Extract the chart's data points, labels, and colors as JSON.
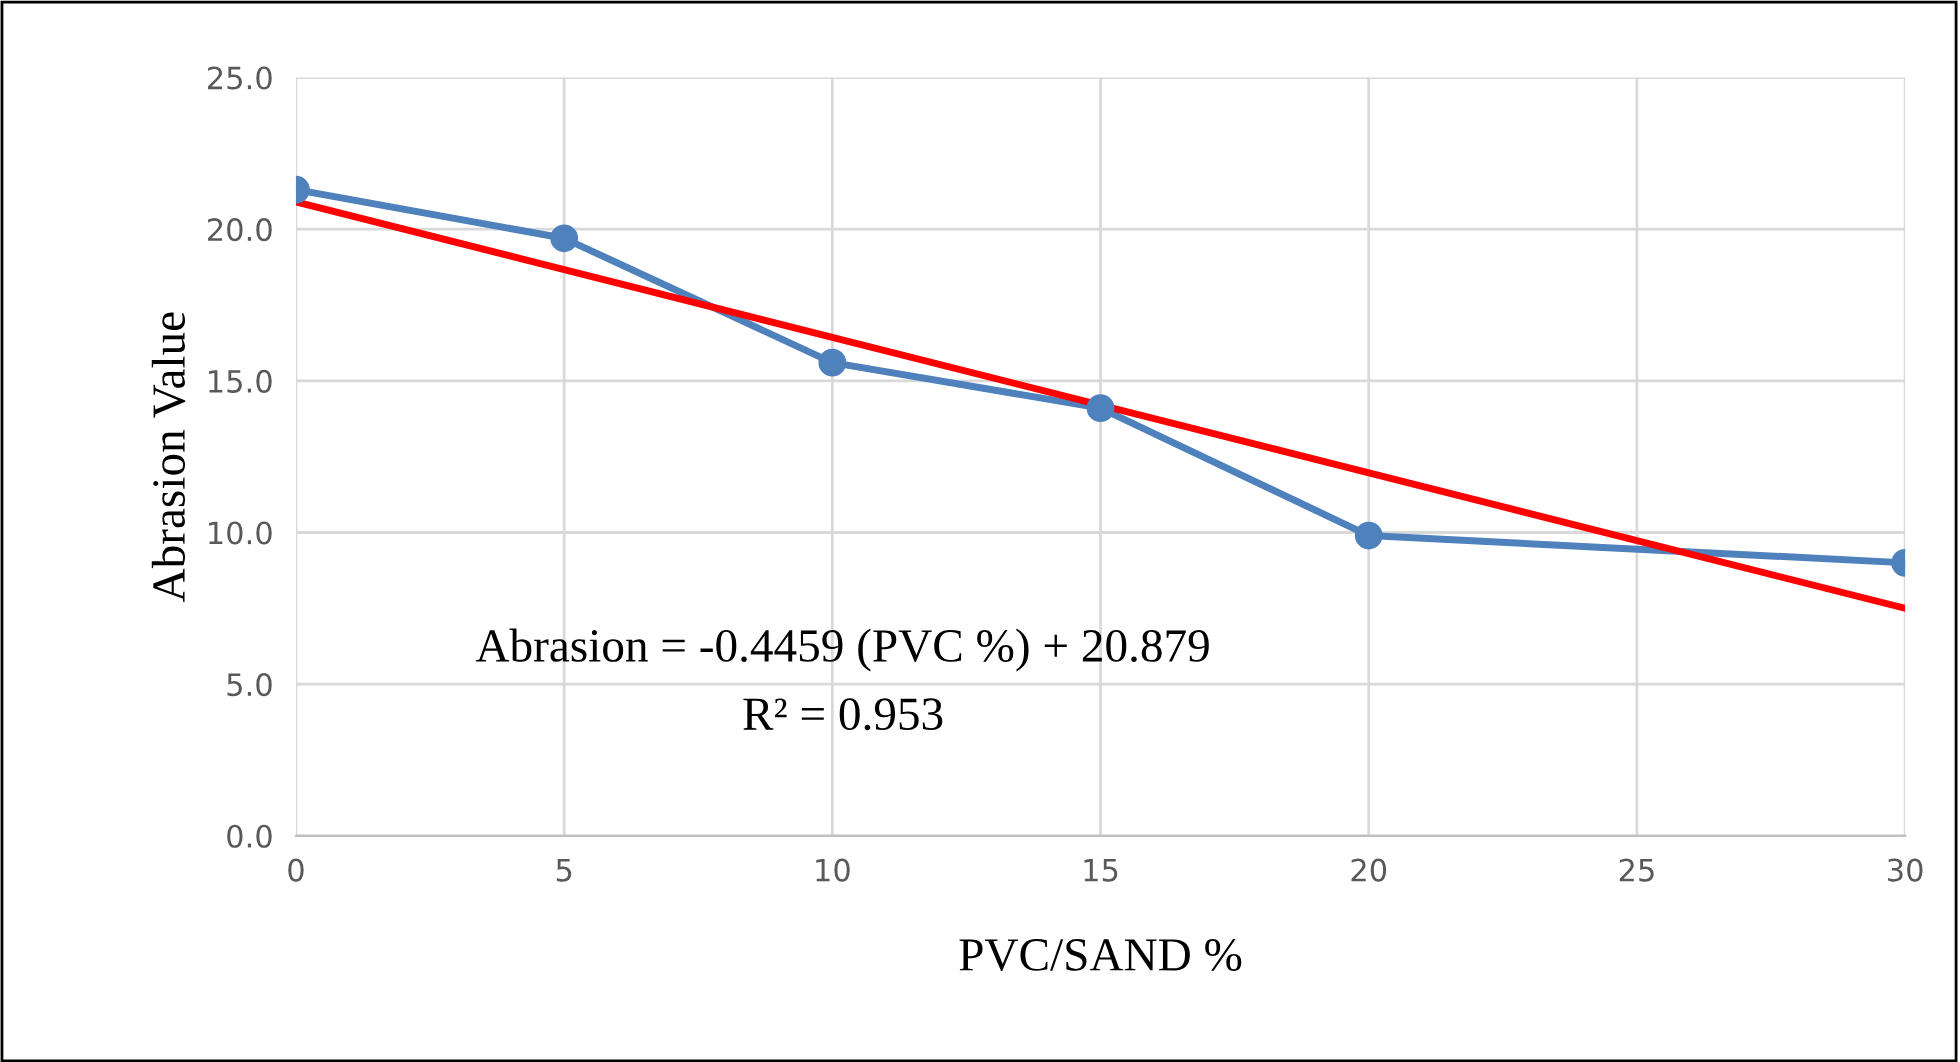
{
  "chart_data": {
    "type": "line",
    "xlabel": "PVC/SAND %",
    "ylabel": "Abrasion Value",
    "series": [
      {
        "color": "#4f81bd",
        "x": [
          0,
          5,
          10,
          15,
          20,
          30
        ],
        "values": [
          21.3,
          19.7,
          15.6,
          14.1,
          9.9,
          9.0
        ],
        "marker": "circle"
      },
      {
        "color": "#ff0000",
        "x": [
          0,
          30
        ],
        "values": [
          20.9,
          7.5
        ],
        "marker": "none"
      }
    ],
    "xlim": [
      0,
      30
    ],
    "xticks": [
      0,
      5,
      10,
      15,
      20,
      25,
      30
    ],
    "ylim": [
      0,
      25
    ],
    "yticks": [
      {
        "value": 0,
        "label": "0.0"
      },
      {
        "value": 5,
        "label": "5.0"
      },
      {
        "value": 10,
        "label": "10.0"
      },
      {
        "value": 15,
        "label": "15.0"
      },
      {
        "value": 20,
        "label": "20.0"
      },
      {
        "value": 25,
        "label": "25.0"
      }
    ],
    "grid": true,
    "annotations": [
      "Abrasion = -0.4459 (PVC %) + 20.879",
      "R² = 0.953"
    ]
  }
}
